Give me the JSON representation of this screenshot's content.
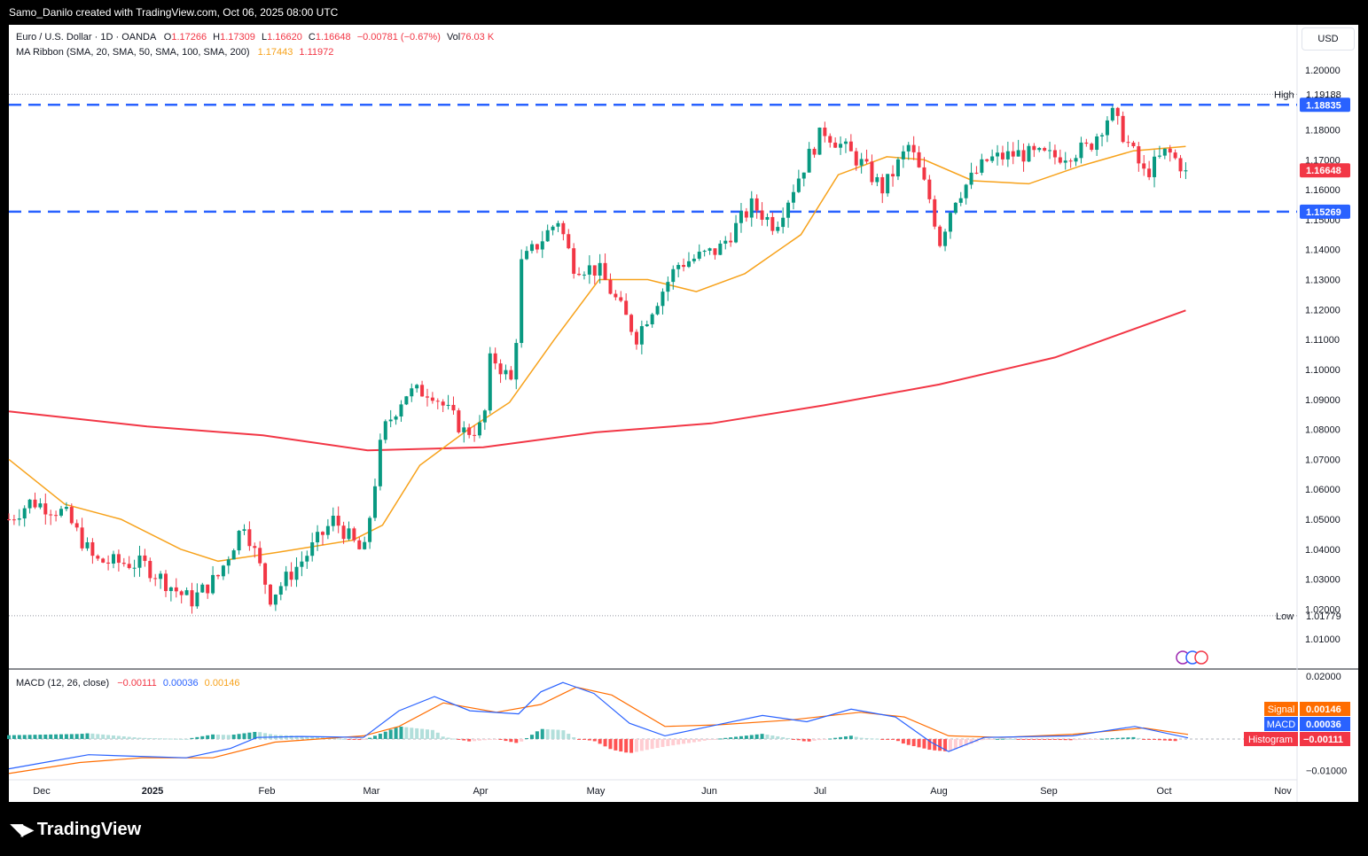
{
  "header": {
    "attribution": "Samo_Danilo created with TradingView.com, Oct 06, 2025 08:00 UTC"
  },
  "legend": {
    "symbol": "Euro / U.S. Dollar · 1D · OANDA",
    "o_label": "O",
    "o_value": "1.17266",
    "h_label": "H",
    "h_value": "1.17309",
    "l_label": "L",
    "l_value": "1.16620",
    "c_label": "C",
    "c_value": "1.16648",
    "change": "−0.00781 (−0.67%)",
    "vol_label": "Vol",
    "vol_value": "76.03 K",
    "ma_title": "MA Ribbon (SMA, 20, SMA, 50, SMA, 100, SMA, 200)",
    "ma_20_value": "1.17443",
    "ma_200_value": "1.11972",
    "macd_title": "MACD (12, 26, close)",
    "macd_hist": "−0.00111",
    "macd_line": "0.00036",
    "macd_signal": "0.00146"
  },
  "currency": "USD",
  "price_axis": {
    "ticks": [
      "1.20000",
      "1.19000",
      "1.18000",
      "1.17000",
      "1.16000",
      "1.15000",
      "1.14000",
      "1.13000",
      "1.12000",
      "1.11000",
      "1.10000",
      "1.09000",
      "1.08000",
      "1.07000",
      "1.06000",
      "1.05000",
      "1.04000",
      "1.03000",
      "1.02000",
      "1.01000"
    ],
    "high_label": "High",
    "high_value": "1.19188",
    "low_label": "Low",
    "low_value": "1.01779",
    "resistance": "1.18835",
    "support": "1.15269",
    "last": "1.16648"
  },
  "macd_axis": {
    "ticks": [
      "0.02000",
      "−0.01000"
    ],
    "signal_label": "Signal",
    "signal_value": "0.00146",
    "macd_label": "MACD",
    "macd_value": "0.00036",
    "hist_label": "Histogram",
    "hist_value": "−0.00111"
  },
  "time_axis": [
    "Dec",
    "2025",
    "Feb",
    "Mar",
    "Apr",
    "May",
    "Jun",
    "Jul",
    "Aug",
    "Sep",
    "Oct",
    "Nov"
  ],
  "brand": "TradingView",
  "colors": {
    "up": "#089981",
    "down": "#f23645",
    "ma20": "#f7a21b",
    "ma200": "#f23645",
    "level": "#2962ff",
    "macd": "#2962ff",
    "signal": "#ff6d00"
  },
  "chart_data": {
    "type": "candlestick",
    "title": "Euro / U.S. Dollar · 1D · OANDA",
    "ylim": [
      1.0,
      1.205
    ],
    "x_range": [
      "Nov 2024",
      "Nov 2025"
    ],
    "levels": {
      "resistance": 1.18835,
      "support": 1.15269,
      "high": 1.19188,
      "low": 1.01779
    },
    "close_path": [
      {
        "x": "2024-11-25",
        "y": 1.05
      },
      {
        "x": "2024-12-01",
        "y": 1.056
      },
      {
        "x": "2024-12-10",
        "y": 1.052
      },
      {
        "x": "2024-12-18",
        "y": 1.036
      },
      {
        "x": "2024-12-31",
        "y": 1.035
      },
      {
        "x": "2025-01-10",
        "y": 1.025
      },
      {
        "x": "2025-01-13",
        "y": 1.023
      },
      {
        "x": "2025-01-20",
        "y": 1.031
      },
      {
        "x": "2025-01-27",
        "y": 1.049
      },
      {
        "x": "2025-02-03",
        "y": 1.024
      },
      {
        "x": "2025-02-12",
        "y": 1.037
      },
      {
        "x": "2025-02-20",
        "y": 1.05
      },
      {
        "x": "2025-02-28",
        "y": 1.038
      },
      {
        "x": "2025-03-05",
        "y": 1.079
      },
      {
        "x": "2025-03-11",
        "y": 1.092
      },
      {
        "x": "2025-03-18",
        "y": 1.093
      },
      {
        "x": "2025-03-27",
        "y": 1.079
      },
      {
        "x": "2025-04-01",
        "y": 1.081
      },
      {
        "x": "2025-04-03",
        "y": 1.105
      },
      {
        "x": "2025-04-09",
        "y": 1.095
      },
      {
        "x": "2025-04-11",
        "y": 1.135
      },
      {
        "x": "2025-04-21",
        "y": 1.15
      },
      {
        "x": "2025-04-25",
        "y": 1.135
      },
      {
        "x": "2025-05-02",
        "y": 1.133
      },
      {
        "x": "2025-05-12",
        "y": 1.111
      },
      {
        "x": "2025-05-15",
        "y": 1.118
      },
      {
        "x": "2025-05-23",
        "y": 1.135
      },
      {
        "x": "2025-06-03",
        "y": 1.14
      },
      {
        "x": "2025-06-12",
        "y": 1.155
      },
      {
        "x": "2025-06-18",
        "y": 1.148
      },
      {
        "x": "2025-06-27",
        "y": 1.171
      },
      {
        "x": "2025-07-01",
        "y": 1.18
      },
      {
        "x": "2025-07-11",
        "y": 1.169
      },
      {
        "x": "2025-07-17",
        "y": 1.16
      },
      {
        "x": "2025-07-24",
        "y": 1.175
      },
      {
        "x": "2025-07-30",
        "y": 1.155
      },
      {
        "x": "2025-08-01",
        "y": 1.142
      },
      {
        "x": "2025-08-05",
        "y": 1.157
      },
      {
        "x": "2025-08-14",
        "y": 1.17
      },
      {
        "x": "2025-08-22",
        "y": 1.172
      },
      {
        "x": "2025-09-01",
        "y": 1.171
      },
      {
        "x": "2025-09-10",
        "y": 1.174
      },
      {
        "x": "2025-09-16",
        "y": 1.186
      },
      {
        "x": "2025-09-25",
        "y": 1.165
      },
      {
        "x": "2025-10-01",
        "y": 1.173
      },
      {
        "x": "2025-10-06",
        "y": 1.16648
      }
    ],
    "ma20": [
      {
        "x": "2024-11-25",
        "y": 1.07
      },
      {
        "x": "2024-12-10",
        "y": 1.055
      },
      {
        "x": "2024-12-25",
        "y": 1.05
      },
      {
        "x": "2025-01-10",
        "y": 1.04
      },
      {
        "x": "2025-01-20",
        "y": 1.036
      },
      {
        "x": "2025-02-05",
        "y": 1.039
      },
      {
        "x": "2025-02-25",
        "y": 1.043
      },
      {
        "x": "2025-03-05",
        "y": 1.048
      },
      {
        "x": "2025-03-15",
        "y": 1.068
      },
      {
        "x": "2025-03-28",
        "y": 1.08
      },
      {
        "x": "2025-04-08",
        "y": 1.089
      },
      {
        "x": "2025-04-20",
        "y": 1.11
      },
      {
        "x": "2025-05-02",
        "y": 1.13
      },
      {
        "x": "2025-05-15",
        "y": 1.13
      },
      {
        "x": "2025-05-28",
        "y": 1.126
      },
      {
        "x": "2025-06-10",
        "y": 1.132
      },
      {
        "x": "2025-06-25",
        "y": 1.145
      },
      {
        "x": "2025-07-05",
        "y": 1.165
      },
      {
        "x": "2025-07-18",
        "y": 1.171
      },
      {
        "x": "2025-07-28",
        "y": 1.17
      },
      {
        "x": "2025-08-10",
        "y": 1.163
      },
      {
        "x": "2025-08-25",
        "y": 1.162
      },
      {
        "x": "2025-09-08",
        "y": 1.168
      },
      {
        "x": "2025-09-22",
        "y": 1.173
      },
      {
        "x": "2025-10-06",
        "y": 1.17443
      }
    ],
    "ma200": [
      {
        "x": "2024-11-25",
        "y": 1.086
      },
      {
        "x": "2025-01-01",
        "y": 1.081
      },
      {
        "x": "2025-02-01",
        "y": 1.078
      },
      {
        "x": "2025-03-01",
        "y": 1.073
      },
      {
        "x": "2025-04-01",
        "y": 1.074
      },
      {
        "x": "2025-05-01",
        "y": 1.079
      },
      {
        "x": "2025-06-01",
        "y": 1.082
      },
      {
        "x": "2025-07-01",
        "y": 1.088
      },
      {
        "x": "2025-08-01",
        "y": 1.095
      },
      {
        "x": "2025-09-01",
        "y": 1.104
      },
      {
        "x": "2025-10-06",
        "y": 1.11972
      }
    ],
    "macd": {
      "macd": 0.00036,
      "signal": 0.00146,
      "histogram": -0.00111,
      "ylim": [
        -0.013,
        0.022
      ]
    }
  }
}
